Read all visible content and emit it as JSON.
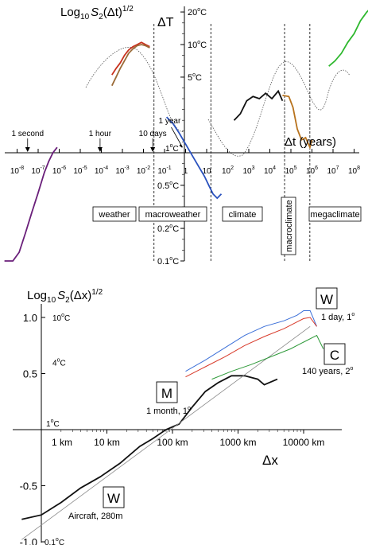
{
  "chart_data": [
    {
      "type": "line",
      "title": "",
      "ylabel_prefix": "Log",
      "ylabel_sub": "10",
      "ylabel_var": "S",
      "ylabel_var_sub": "2",
      "ylabel_suffix": "(Δt)",
      "ylabel_sup": "1/2",
      "right_axis_label": "ΔT",
      "xlabel": "Δt (years)",
      "x_scale": "log10",
      "xlim": [
        -8.6,
        9.2
      ],
      "ylim_log10_deltaT": [
        -1.0,
        1.4
      ],
      "x_ticks": [
        {
          "base": "10",
          "exp": "-8",
          "value": -8
        },
        {
          "base": "10",
          "exp": "-7",
          "value": -7
        },
        {
          "base": "10",
          "exp": "-6",
          "value": -6
        },
        {
          "base": "10",
          "exp": "-5",
          "value": -5
        },
        {
          "base": "10",
          "exp": "-4",
          "value": -4
        },
        {
          "base": "10",
          "exp": "-3",
          "value": -3
        },
        {
          "base": "10",
          "exp": "-2",
          "value": -2
        },
        {
          "base": "10",
          "exp": "-1",
          "value": -1
        },
        {
          "base": "1",
          "exp": "",
          "value": 0
        },
        {
          "base": "10",
          "exp": "",
          "value": 1
        },
        {
          "base": "10",
          "exp": "2",
          "value": 2
        },
        {
          "base": "10",
          "exp": "3",
          "value": 3
        },
        {
          "base": "10",
          "exp": "4",
          "value": 4
        },
        {
          "base": "10",
          "exp": "5",
          "value": 5
        },
        {
          "base": "10",
          "exp": "6",
          "value": 6
        },
        {
          "base": "10",
          "exp": "7",
          "value": 7
        },
        {
          "base": "10",
          "exp": "8",
          "value": 8
        },
        {
          "base": "10",
          "exp": "9",
          "value": 9
        }
      ],
      "y_ticks": [
        {
          "num": "20",
          "unit": "C",
          "value": 1.301
        },
        {
          "num": "10",
          "unit": "C",
          "value": 1.0
        },
        {
          "num": "5",
          "unit": "C",
          "value": 0.699
        },
        {
          "num": "1",
          "unit": "C",
          "value": 0.0
        },
        {
          "num": "0.5",
          "unit": "C",
          "value": -0.301
        },
        {
          "num": "0.2",
          "unit": "C",
          "value": -0.699
        },
        {
          "num": "0.1",
          "unit": "C",
          "value": -1.0
        }
      ],
      "time_markers": [
        {
          "label": "1 second",
          "value": -7.5
        },
        {
          "label": "1 hour",
          "value": -4.06
        },
        {
          "label": "10 days",
          "value": -1.56
        },
        {
          "label": "1 year",
          "value": 0
        }
      ],
      "regimes": [
        "weather",
        "macroweather",
        "climate",
        "macroclimate",
        "megaclimate"
      ],
      "regime_boundaries": [
        -1.5,
        1.2,
        4.7,
        5.9
      ],
      "series": [
        {
          "color": "#6a1f7a",
          "points": [
            [
              -8.6,
              -1.0
            ],
            [
              -8.2,
              -1.0
            ],
            [
              -7.9,
              -0.92
            ],
            [
              -7.6,
              -0.74
            ],
            [
              -7.3,
              -0.55
            ],
            [
              -7.0,
              -0.37
            ],
            [
              -6.7,
              -0.18
            ],
            [
              -6.5,
              -0.08
            ],
            [
              -6.3,
              0.0
            ],
            [
              -6.1,
              0.05
            ]
          ]
        },
        {
          "color": "#c8321e",
          "points": [
            [
              -3.5,
              0.72
            ],
            [
              -3.3,
              0.78
            ],
            [
              -3.1,
              0.83
            ],
            [
              -2.9,
              0.9
            ],
            [
              -2.7,
              0.95
            ],
            [
              -2.5,
              0.98
            ],
            [
              -2.3,
              1.0
            ],
            [
              -2.1,
              1.02
            ],
            [
              -1.9,
              1.0
            ],
            [
              -1.7,
              0.98
            ]
          ]
        },
        {
          "color": "#9b6b38",
          "points": [
            [
              -3.5,
              0.62
            ],
            [
              -3.3,
              0.7
            ],
            [
              -3.1,
              0.78
            ],
            [
              -2.9,
              0.85
            ],
            [
              -2.7,
              0.92
            ],
            [
              -2.5,
              0.96
            ],
            [
              -2.3,
              0.99
            ],
            [
              -2.1,
              1.0
            ],
            [
              -1.9,
              0.99
            ],
            [
              -1.7,
              0.97
            ]
          ]
        },
        {
          "color": "#2a52be",
          "points": [
            [
              -0.9,
              0.33
            ],
            [
              -0.6,
              0.27
            ],
            [
              -0.3,
              0.18
            ],
            [
              0,
              0.08
            ],
            [
              0.3,
              -0.02
            ],
            [
              0.6,
              -0.12
            ],
            [
              0.9,
              -0.22
            ],
            [
              1.1,
              -0.3
            ],
            [
              1.3,
              -0.38
            ],
            [
              1.5,
              -0.42
            ],
            [
              1.7,
              -0.38
            ]
          ]
        },
        {
          "color": "#111111",
          "points": [
            [
              2.3,
              0.3
            ],
            [
              2.6,
              0.36
            ],
            [
              2.9,
              0.48
            ],
            [
              3.2,
              0.52
            ],
            [
              3.5,
              0.5
            ],
            [
              3.8,
              0.55
            ],
            [
              4.1,
              0.5
            ],
            [
              4.4,
              0.57
            ],
            [
              4.6,
              0.48
            ]
          ]
        },
        {
          "color": "#b8731e",
          "points": [
            [
              4.6,
              0.53
            ],
            [
              4.9,
              0.52
            ],
            [
              5.1,
              0.42
            ],
            [
              5.3,
              0.22
            ],
            [
              5.5,
              0.12
            ],
            [
              5.7,
              0.14
            ],
            [
              5.9,
              0.05
            ],
            [
              6.0,
              0.12
            ]
          ]
        },
        {
          "color": "#2eb82e",
          "points": [
            [
              6.8,
              0.8
            ],
            [
              7.1,
              0.85
            ],
            [
              7.4,
              0.92
            ],
            [
              7.7,
              1.02
            ],
            [
              8.0,
              1.1
            ],
            [
              8.3,
              1.22
            ],
            [
              8.6,
              1.3
            ],
            [
              8.9,
              1.36
            ],
            [
              9.1,
              1.42
            ]
          ]
        }
      ]
    },
    {
      "type": "line",
      "title": "",
      "ylabel_prefix": "Log",
      "ylabel_sub": "10",
      "ylabel_var": "S",
      "ylabel_var_sub": "2",
      "ylabel_suffix": "(Δx)",
      "ylabel_sup": "1/2",
      "xlabel": "Δx",
      "x_scale": "log10",
      "xlim": [
        -0.2,
        4.4
      ],
      "ylim": [
        -1.0,
        1.1
      ],
      "x_ticks": [
        {
          "label": "1 km",
          "value": 0
        },
        {
          "label": "10 km",
          "value": 1
        },
        {
          "label": "100 km",
          "value": 2
        },
        {
          "label": "1000 km",
          "value": 3
        },
        {
          "label": "10000 km",
          "value": 4
        }
      ],
      "y_ticks": [
        {
          "label": "1.0",
          "value": 1.0
        },
        {
          "label": "0.5",
          "value": 0.5
        },
        {
          "label": "-0.5",
          "value": -0.5
        },
        {
          "label": "-1.0",
          "value": -1.0
        }
      ],
      "temp_labels": [
        {
          "num": "10",
          "unit": "C",
          "value": 1.0
        },
        {
          "num": "4",
          "unit": "C",
          "value": 0.6
        },
        {
          "num": "1",
          "unit": "C",
          "value": 0.0
        },
        {
          "num": "0.1",
          "unit": "C",
          "value": -1.0
        }
      ],
      "annotations": [
        {
          "box": "W",
          "text": "1 day, 1",
          "deg": "o"
        },
        {
          "box": "C",
          "text": "140 years, 2",
          "deg": "o"
        },
        {
          "box": "M",
          "text": "1 month, 1",
          "deg": "o"
        },
        {
          "box": "W",
          "text": "Aircraft, 280m",
          "deg": ""
        }
      ],
      "series": [
        {
          "color": "#111111",
          "width": 1.8,
          "points": [
            [
              -0.3,
              -0.8
            ],
            [
              0.0,
              -0.76
            ],
            [
              0.3,
              -0.65
            ],
            [
              0.6,
              -0.52
            ],
            [
              0.9,
              -0.42
            ],
            [
              1.2,
              -0.3
            ],
            [
              1.5,
              -0.15
            ],
            [
              1.7,
              -0.08
            ],
            [
              1.9,
              0.0
            ],
            [
              2.1,
              0.05
            ],
            [
              2.3,
              0.2
            ],
            [
              2.5,
              0.34
            ],
            [
              2.7,
              0.42
            ],
            [
              2.9,
              0.48
            ],
            [
              3.1,
              0.48
            ],
            [
              3.3,
              0.45
            ],
            [
              3.4,
              0.4
            ],
            [
              3.6,
              0.45
            ]
          ]
        },
        {
          "color": "#8a8a8a",
          "width": 0.8,
          "points": [
            [
              -0.3,
              -0.98
            ],
            [
              4.1,
              0.92
            ]
          ]
        },
        {
          "color": "#3b6fd8",
          "width": 1.0,
          "points": [
            [
              2.2,
              0.52
            ],
            [
              2.5,
              0.62
            ],
            [
              2.8,
              0.73
            ],
            [
              3.1,
              0.84
            ],
            [
              3.4,
              0.92
            ],
            [
              3.7,
              0.97
            ],
            [
              3.9,
              1.02
            ],
            [
              4.0,
              1.06
            ],
            [
              4.1,
              1.06
            ],
            [
              4.2,
              0.92
            ]
          ]
        },
        {
          "color": "#d83a2a",
          "width": 1.0,
          "points": [
            [
              2.2,
              0.47
            ],
            [
              2.5,
              0.56
            ],
            [
              2.8,
              0.65
            ],
            [
              3.1,
              0.75
            ],
            [
              3.4,
              0.83
            ],
            [
              3.7,
              0.9
            ],
            [
              3.9,
              0.96
            ],
            [
              4.0,
              0.99
            ],
            [
              4.1,
              1.0
            ],
            [
              4.2,
              0.92
            ]
          ]
        },
        {
          "color": "#2f9a3a",
          "width": 1.0,
          "points": [
            [
              2.6,
              0.45
            ],
            [
              2.9,
              0.52
            ],
            [
              3.2,
              0.58
            ],
            [
              3.5,
              0.65
            ],
            [
              3.8,
              0.72
            ],
            [
              4.0,
              0.78
            ],
            [
              4.2,
              0.84
            ],
            [
              4.3,
              0.72
            ]
          ]
        }
      ]
    }
  ]
}
